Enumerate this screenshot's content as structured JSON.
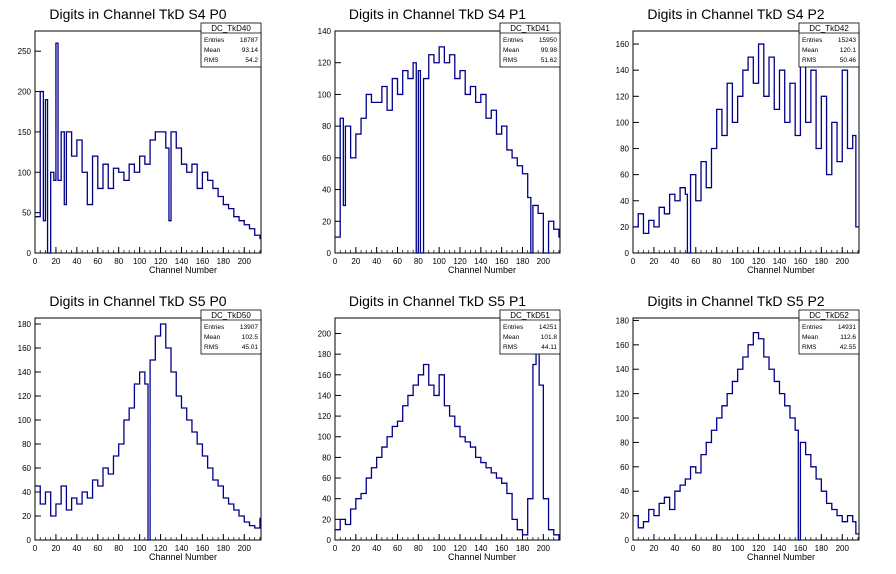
{
  "chart_data": [
    {
      "type": "histogram",
      "title": "Digits in Channel TkD S4 P0",
      "xlabel": "Channel Number",
      "ylabel": "",
      "xlim": [
        0,
        216
      ],
      "ylim": [
        0,
        275
      ],
      "xticks": [
        0,
        20,
        40,
        60,
        80,
        100,
        120,
        140,
        160,
        180,
        200
      ],
      "yticks": [
        0,
        50,
        100,
        150,
        200,
        250
      ],
      "stats": {
        "name": "DC_TkD40",
        "Entries": "18787",
        "Mean": "93.14",
        "RMS": "54.2"
      },
      "x": [
        0,
        5,
        8,
        10,
        12,
        15,
        18,
        20,
        22,
        25,
        28,
        30,
        35,
        40,
        45,
        50,
        55,
        60,
        65,
        70,
        75,
        80,
        85,
        90,
        95,
        100,
        105,
        110,
        115,
        120,
        125,
        128,
        130,
        135,
        140,
        145,
        150,
        155,
        160,
        165,
        170,
        175,
        180,
        185,
        190,
        195,
        200,
        205,
        210,
        215
      ],
      "values": [
        45,
        200,
        40,
        190,
        0,
        100,
        90,
        260,
        90,
        150,
        60,
        150,
        120,
        140,
        100,
        60,
        120,
        80,
        110,
        80,
        105,
        100,
        90,
        110,
        100,
        120,
        110,
        140,
        150,
        150,
        130,
        40,
        150,
        130,
        110,
        100,
        110,
        80,
        100,
        90,
        80,
        70,
        60,
        55,
        45,
        40,
        35,
        30,
        22,
        18
      ]
    },
    {
      "type": "histogram",
      "title": "Digits in Channel TkD S4 P1",
      "xlabel": "Channel Number",
      "ylabel": "",
      "xlim": [
        0,
        216
      ],
      "ylim": [
        0,
        140
      ],
      "xticks": [
        0,
        20,
        40,
        60,
        80,
        100,
        120,
        140,
        160,
        180,
        200
      ],
      "yticks": [
        0,
        20,
        40,
        60,
        80,
        100,
        120,
        140
      ],
      "stats": {
        "name": "DC_TkD41",
        "Entries": "15950",
        "Mean": "99.98",
        "RMS": "51.62"
      },
      "x": [
        0,
        5,
        8,
        10,
        15,
        20,
        25,
        30,
        35,
        40,
        45,
        50,
        55,
        60,
        65,
        70,
        75,
        78,
        80,
        82,
        85,
        90,
        95,
        100,
        105,
        110,
        115,
        120,
        125,
        130,
        135,
        140,
        145,
        150,
        155,
        160,
        165,
        170,
        175,
        180,
        185,
        188,
        190,
        195,
        200,
        205,
        210,
        215
      ],
      "values": [
        10,
        85,
        30,
        80,
        60,
        75,
        85,
        100,
        95,
        95,
        105,
        90,
        110,
        100,
        115,
        110,
        120,
        0,
        115,
        0,
        110,
        125,
        120,
        130,
        120,
        125,
        110,
        115,
        100,
        105,
        95,
        100,
        85,
        90,
        75,
        80,
        65,
        60,
        55,
        50,
        35,
        0,
        30,
        25,
        0,
        20,
        15,
        10
      ]
    },
    {
      "type": "histogram",
      "title": "Digits in Channel TkD S4 P2",
      "xlabel": "Channel Number",
      "ylabel": "",
      "xlim": [
        0,
        216
      ],
      "ylim": [
        0,
        170
      ],
      "xticks": [
        0,
        20,
        40,
        60,
        80,
        100,
        120,
        140,
        160,
        180,
        200
      ],
      "yticks": [
        0,
        20,
        40,
        60,
        80,
        100,
        120,
        140,
        160
      ],
      "stats": {
        "name": "DC_TkD42",
        "Entries": "15243",
        "Mean": "120.1",
        "RMS": "50.46"
      },
      "x": [
        0,
        5,
        10,
        15,
        20,
        25,
        30,
        35,
        40,
        45,
        50,
        52,
        55,
        60,
        65,
        70,
        75,
        80,
        85,
        90,
        95,
        100,
        105,
        110,
        115,
        120,
        125,
        130,
        135,
        140,
        145,
        150,
        155,
        160,
        165,
        170,
        175,
        180,
        185,
        190,
        195,
        200,
        205,
        210,
        213
      ],
      "values": [
        20,
        30,
        15,
        25,
        20,
        35,
        30,
        45,
        40,
        50,
        45,
        0,
        60,
        40,
        70,
        50,
        80,
        110,
        90,
        130,
        100,
        120,
        140,
        150,
        130,
        160,
        120,
        150,
        110,
        140,
        100,
        130,
        90,
        150,
        100,
        140,
        80,
        120,
        60,
        100,
        70,
        140,
        80,
        90,
        20
      ]
    },
    {
      "type": "histogram",
      "title": "Digits in Channel TkD S5 P0",
      "xlabel": "Channel Number",
      "ylabel": "",
      "xlim": [
        0,
        216
      ],
      "ylim": [
        0,
        185
      ],
      "xticks": [
        0,
        20,
        40,
        60,
        80,
        100,
        120,
        140,
        160,
        180,
        200
      ],
      "yticks": [
        0,
        20,
        40,
        60,
        80,
        100,
        120,
        140,
        160,
        180
      ],
      "stats": {
        "name": "DC_TkD50",
        "Entries": "13907",
        "Mean": "102.5",
        "RMS": "45.01"
      },
      "x": [
        0,
        5,
        10,
        15,
        20,
        25,
        30,
        35,
        40,
        45,
        50,
        55,
        60,
        65,
        70,
        75,
        80,
        85,
        90,
        95,
        100,
        105,
        108,
        110,
        115,
        120,
        125,
        130,
        135,
        140,
        145,
        150,
        155,
        160,
        165,
        170,
        175,
        180,
        185,
        190,
        195,
        200,
        205,
        210,
        215
      ],
      "values": [
        45,
        30,
        40,
        20,
        30,
        45,
        25,
        35,
        30,
        40,
        35,
        50,
        45,
        60,
        55,
        70,
        80,
        100,
        110,
        130,
        140,
        130,
        0,
        150,
        170,
        180,
        160,
        140,
        120,
        110,
        100,
        90,
        80,
        70,
        60,
        50,
        45,
        35,
        30,
        25,
        20,
        15,
        12,
        10,
        18
      ]
    },
    {
      "type": "histogram",
      "title": "Digits in Channel TkD S5 P1",
      "xlabel": "Channel Number",
      "ylabel": "",
      "xlim": [
        0,
        216
      ],
      "ylim": [
        0,
        215
      ],
      "xticks": [
        0,
        20,
        40,
        60,
        80,
        100,
        120,
        140,
        160,
        180,
        200
      ],
      "yticks": [
        0,
        20,
        40,
        60,
        80,
        100,
        120,
        140,
        160,
        180,
        200
      ],
      "stats": {
        "name": "DC_TkD51",
        "Entries": "14251",
        "Mean": "101.8",
        "RMS": "44.11"
      },
      "x": [
        0,
        5,
        10,
        15,
        20,
        25,
        30,
        35,
        40,
        45,
        50,
        55,
        60,
        65,
        70,
        75,
        80,
        85,
        90,
        95,
        100,
        105,
        110,
        115,
        120,
        125,
        130,
        135,
        140,
        145,
        150,
        155,
        160,
        165,
        170,
        175,
        180,
        185,
        190,
        193,
        196,
        200,
        205,
        210,
        215
      ],
      "values": [
        10,
        20,
        15,
        30,
        40,
        45,
        60,
        70,
        80,
        90,
        100,
        110,
        115,
        130,
        140,
        150,
        160,
        170,
        150,
        140,
        160,
        130,
        120,
        110,
        100,
        95,
        90,
        80,
        75,
        70,
        65,
        60,
        55,
        45,
        20,
        10,
        5,
        40,
        170,
        200,
        150,
        40,
        10,
        5,
        0
      ]
    },
    {
      "type": "histogram",
      "title": "Digits in Channel TkD S5 P2",
      "xlabel": "Channel Number",
      "ylabel": "",
      "xlim": [
        0,
        216
      ],
      "ylim": [
        0,
        182
      ],
      "xticks": [
        0,
        20,
        40,
        60,
        80,
        100,
        120,
        140,
        160,
        180,
        200
      ],
      "yticks": [
        0,
        20,
        40,
        60,
        80,
        100,
        120,
        140,
        160,
        180
      ],
      "stats": {
        "name": "DC_TkD52",
        "Entries": "14931",
        "Mean": "112.6",
        "RMS": "42.55"
      },
      "x": [
        0,
        5,
        10,
        15,
        20,
        25,
        30,
        35,
        40,
        45,
        50,
        55,
        60,
        65,
        70,
        75,
        80,
        85,
        90,
        95,
        100,
        105,
        110,
        115,
        120,
        125,
        130,
        135,
        140,
        145,
        150,
        155,
        158,
        160,
        165,
        170,
        175,
        180,
        185,
        190,
        195,
        200,
        205,
        210,
        213
      ],
      "values": [
        20,
        10,
        15,
        25,
        20,
        30,
        35,
        25,
        40,
        45,
        50,
        60,
        55,
        70,
        80,
        90,
        100,
        110,
        120,
        130,
        140,
        150,
        160,
        170,
        165,
        150,
        140,
        130,
        120,
        110,
        100,
        90,
        0,
        80,
        70,
        60,
        50,
        40,
        30,
        25,
        20,
        15,
        20,
        15,
        5
      ]
    }
  ]
}
